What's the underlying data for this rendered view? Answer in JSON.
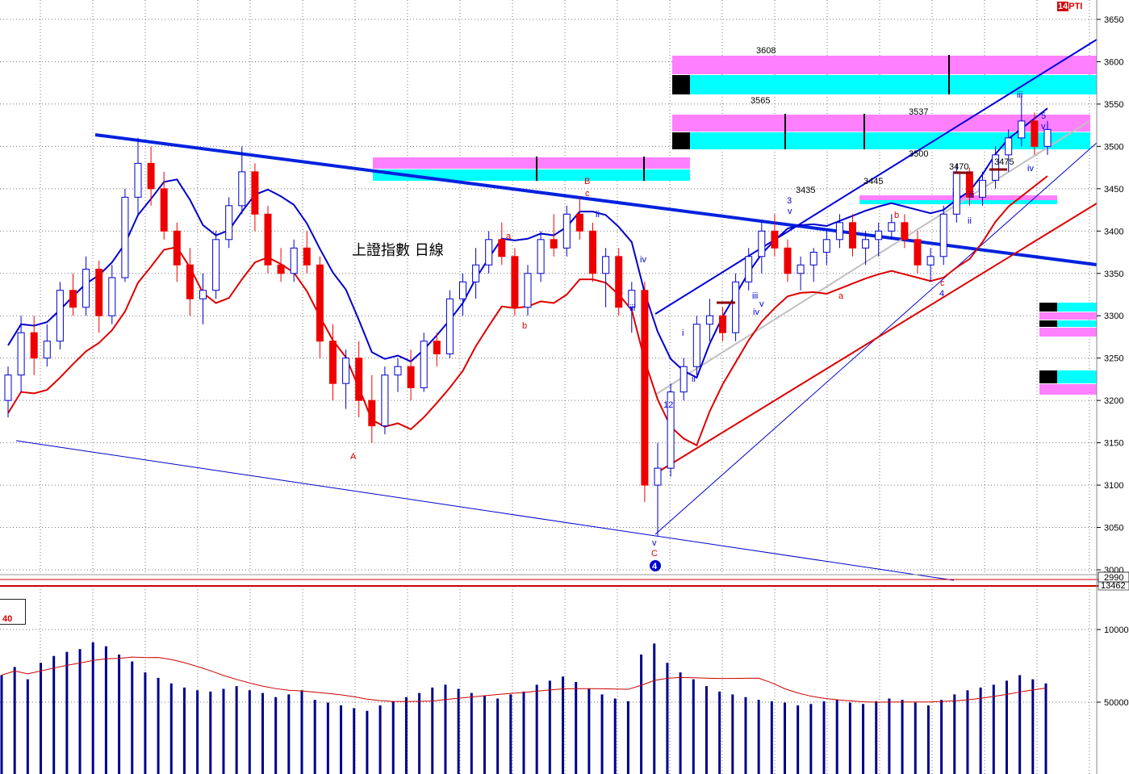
{
  "window": {
    "symbol_number": "14",
    "symbol_text": "PTI",
    "title": "上證指數 日線"
  },
  "price_axis": {
    "ticks": [
      "3650",
      "3600",
      "3550",
      "3500",
      "3450",
      "3400",
      "3350",
      "3300",
      "3250",
      "3200",
      "3150",
      "3100",
      "3050",
      "3000"
    ],
    "current_value": "2990"
  },
  "volume_axis": {
    "ticks": [
      "10000",
      "50000"
    ],
    "top_value": "13462",
    "panel_value": "40"
  },
  "annotations": {
    "levels": [
      "3608",
      "3565",
      "3537",
      "3500",
      "3435",
      "3445",
      "3470",
      "3475"
    ],
    "wave_labels_red": [
      "a",
      "b",
      "B",
      "c",
      "A",
      "C",
      "a",
      "b",
      "c"
    ],
    "wave_labels_blue": [
      "ii",
      "iv",
      "iii",
      "v",
      "i",
      "ii",
      "iii",
      "iv",
      "v",
      "3",
      "v",
      "iii",
      "iii",
      "5",
      "v",
      "iv",
      "i",
      "ii",
      "12",
      "4",
      "4"
    ]
  },
  "colors": {
    "up": "#0000cc",
    "down": "#ee0000",
    "trend_blue": "#0022dd",
    "band_blue": "#0000cc",
    "band_red": "#dd0000",
    "magenta": "#ff80ff",
    "cyan": "#00ffff",
    "volume_bar": "#00008b",
    "grid": "#777777"
  },
  "chart_data": {
    "type": "candlestick",
    "title": "上證指數 日線",
    "ylim": [
      2990,
      3660
    ],
    "volume_ylim": [
      0,
      13462
    ],
    "candles": [
      [
        3200,
        3240,
        3180,
        3230
      ],
      [
        3230,
        3300,
        3210,
        3280
      ],
      [
        3280,
        3300,
        3230,
        3250
      ],
      [
        3250,
        3290,
        3240,
        3270
      ],
      [
        3270,
        3340,
        3260,
        3330
      ],
      [
        3330,
        3350,
        3300,
        3310
      ],
      [
        3310,
        3370,
        3300,
        3355
      ],
      [
        3355,
        3365,
        3280,
        3300
      ],
      [
        3300,
        3360,
        3290,
        3345
      ],
      [
        3345,
        3450,
        3340,
        3440
      ],
      [
        3440,
        3510,
        3420,
        3480
      ],
      [
        3480,
        3500,
        3430,
        3450
      ],
      [
        3450,
        3470,
        3390,
        3400
      ],
      [
        3400,
        3410,
        3340,
        3360
      ],
      [
        3360,
        3380,
        3300,
        3320
      ],
      [
        3320,
        3350,
        3290,
        3330
      ],
      [
        3330,
        3400,
        3320,
        3390
      ],
      [
        3390,
        3440,
        3380,
        3430
      ],
      [
        3430,
        3500,
        3420,
        3470
      ],
      [
        3470,
        3480,
        3400,
        3420
      ],
      [
        3420,
        3430,
        3350,
        3360
      ],
      [
        3360,
        3380,
        3340,
        3350
      ],
      [
        3350,
        3390,
        3340,
        3380
      ],
      [
        3380,
        3400,
        3350,
        3360
      ],
      [
        3360,
        3370,
        3250,
        3270
      ],
      [
        3270,
        3290,
        3200,
        3220
      ],
      [
        3220,
        3260,
        3190,
        3250
      ],
      [
        3250,
        3270,
        3180,
        3200
      ],
      [
        3200,
        3230,
        3150,
        3170
      ],
      [
        3170,
        3240,
        3160,
        3230
      ],
      [
        3230,
        3250,
        3210,
        3240
      ],
      [
        3240,
        3260,
        3200,
        3215
      ],
      [
        3215,
        3280,
        3210,
        3270
      ],
      [
        3270,
        3280,
        3240,
        3255
      ],
      [
        3255,
        3330,
        3250,
        3320
      ],
      [
        3320,
        3350,
        3300,
        3340
      ],
      [
        3340,
        3380,
        3320,
        3360
      ],
      [
        3360,
        3400,
        3350,
        3390
      ],
      [
        3390,
        3410,
        3360,
        3370
      ],
      [
        3370,
        3380,
        3300,
        3310
      ],
      [
        3310,
        3360,
        3300,
        3350
      ],
      [
        3350,
        3400,
        3340,
        3390
      ],
      [
        3390,
        3420,
        3370,
        3380
      ],
      [
        3380,
        3430,
        3370,
        3420
      ],
      [
        3420,
        3440,
        3390,
        3400
      ],
      [
        3400,
        3410,
        3340,
        3350
      ],
      [
        3350,
        3380,
        3310,
        3370
      ],
      [
        3370,
        3380,
        3300,
        3310
      ],
      [
        3310,
        3340,
        3280,
        3330
      ],
      [
        3330,
        3340,
        3080,
        3100
      ],
      [
        3100,
        3150,
        3040,
        3120
      ],
      [
        3120,
        3220,
        3110,
        3210
      ],
      [
        3210,
        3250,
        3200,
        3240
      ],
      [
        3240,
        3300,
        3230,
        3290
      ],
      [
        3290,
        3320,
        3270,
        3300
      ],
      [
        3300,
        3310,
        3270,
        3280
      ],
      [
        3280,
        3350,
        3270,
        3340
      ],
      [
        3340,
        3380,
        3330,
        3370
      ],
      [
        3370,
        3410,
        3350,
        3400
      ],
      [
        3400,
        3420,
        3370,
        3380
      ],
      [
        3380,
        3390,
        3340,
        3350
      ],
      [
        3350,
        3370,
        3330,
        3360
      ],
      [
        3360,
        3380,
        3340,
        3375
      ],
      [
        3375,
        3400,
        3360,
        3390
      ],
      [
        3390,
        3420,
        3380,
        3410
      ],
      [
        3410,
        3420,
        3370,
        3380
      ],
      [
        3380,
        3400,
        3360,
        3390
      ],
      [
        3390,
        3410,
        3370,
        3400
      ],
      [
        3400,
        3420,
        3390,
        3410
      ],
      [
        3410,
        3420,
        3380,
        3390
      ],
      [
        3390,
        3400,
        3350,
        3360
      ],
      [
        3360,
        3380,
        3340,
        3370
      ],
      [
        3370,
        3430,
        3360,
        3420
      ],
      [
        3420,
        3480,
        3410,
        3470
      ],
      [
        3470,
        3475,
        3430,
        3440
      ],
      [
        3440,
        3470,
        3430,
        3460
      ],
      [
        3460,
        3500,
        3450,
        3490
      ],
      [
        3490,
        3520,
        3470,
        3510
      ],
      [
        3510,
        3560,
        3500,
        3530
      ],
      [
        3530,
        3540,
        3490,
        3500
      ],
      [
        3500,
        3530,
        3490,
        3520
      ]
    ],
    "volume": [
      7200,
      7800,
      6900,
      8100,
      8600,
      8900,
      9100,
      9600,
      9300,
      8700,
      8200,
      7400,
      7000,
      6600,
      6300,
      6100,
      6000,
      6200,
      6400,
      6100,
      5900,
      5600,
      5800,
      6100,
      5400,
      5200,
      5000,
      4800,
      4600,
      5000,
      5300,
      5600,
      5900,
      6300,
      6500,
      6200,
      5900,
      5700,
      5500,
      5800,
      6000,
      6500,
      6800,
      7100,
      6700,
      6200,
      5800,
      5500,
      5300,
      8700,
      9500,
      8100,
      7400,
      6900,
      6400,
      6000,
      5800,
      5600,
      5400,
      5300,
      5200,
      5000,
      5100,
      5300,
      5400,
      5200,
      5100,
      5300,
      5500,
      5400,
      5200,
      5000,
      5400,
      5800,
      6100,
      6300,
      6500,
      6800,
      7200,
      6900,
      6600
    ]
  }
}
